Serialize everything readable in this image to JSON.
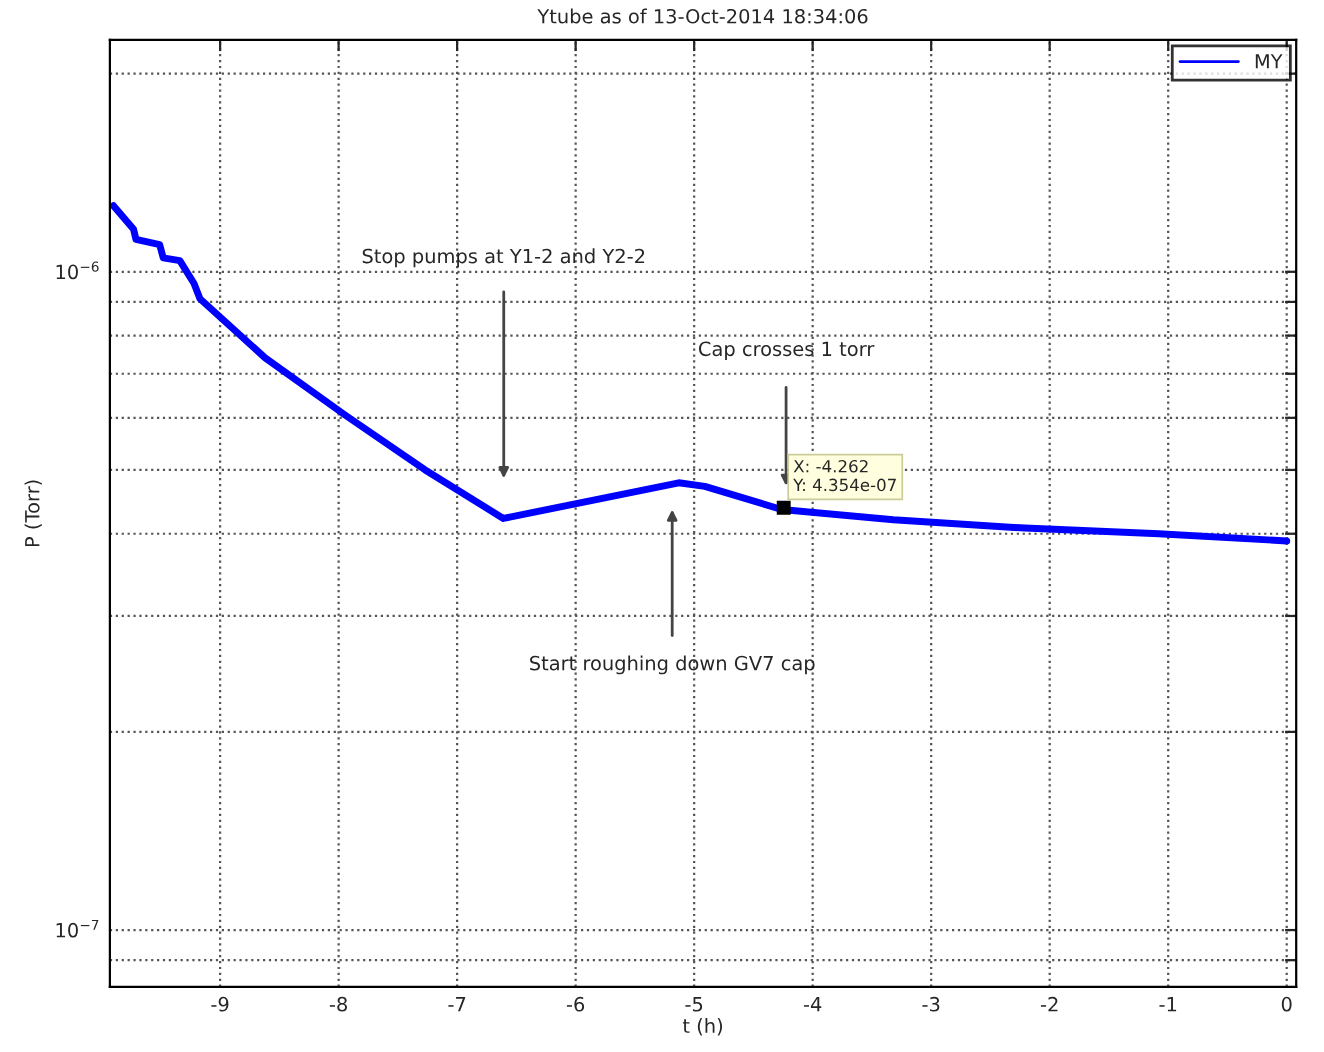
{
  "chart_data": {
    "type": "line",
    "title": "Ytube as of 13-Oct-2014 18:34:06",
    "xlabel": "t (h)",
    "ylabel": "P (Torr)",
    "series": [
      {
        "name": "MY",
        "color": "#0000ff",
        "x": [
          -9.9,
          -9.73,
          -9.71,
          -9.51,
          -9.48,
          -9.34,
          -9.22,
          -9.17,
          -8.62,
          -7.94,
          -7.27,
          -6.61,
          -5.13,
          -4.91,
          -4.262,
          -3.32,
          -2.21,
          -1.08,
          0
        ],
        "values": [
          1.26e-06,
          1.16e-06,
          1.12e-06,
          1.1e-06,
          1.05e-06,
          1.04e-06,
          9.6e-07,
          9.1e-07,
          7.4e-07,
          6.05e-07,
          5e-07,
          4.22e-07,
          4.78e-07,
          4.72e-07,
          4.354e-07,
          4.2e-07,
          4.08e-07,
          4e-07,
          3.9e-07
        ]
      }
    ],
    "log": "y",
    "xlim": [
      -9.93,
      0.08
    ],
    "ylim": [
      8.2e-08,
      2.25e-06
    ],
    "xticks": [
      -9,
      -8,
      -7,
      -6,
      -5,
      -4,
      -3,
      -2,
      -1,
      0
    ],
    "yticks": [
      {
        "value": 9e-08,
        "label": null
      },
      {
        "value": 1e-07,
        "label": "10$^{−7}$"
      },
      {
        "value": 2e-07,
        "label": null
      },
      {
        "value": 3e-07,
        "label": null
      },
      {
        "value": 4e-07,
        "label": null
      },
      {
        "value": 5e-07,
        "label": null
      },
      {
        "value": 6e-07,
        "label": null
      },
      {
        "value": 7e-07,
        "label": null
      },
      {
        "value": 8e-07,
        "label": null
      },
      {
        "value": 9e-07,
        "label": null
      },
      {
        "value": 1e-06,
        "label": "10$^{−6}$"
      },
      {
        "value": 2e-06,
        "label": null
      }
    ],
    "grid": true,
    "legend": "top right",
    "annotations": [
      "Stop pumps at Y1-2 and Y2-2",
      "Start roughing down GV7 cap",
      "Cap crosses 1 torr",
      "X: -4.262\nY: 4.354e-07"
    ]
  }
}
